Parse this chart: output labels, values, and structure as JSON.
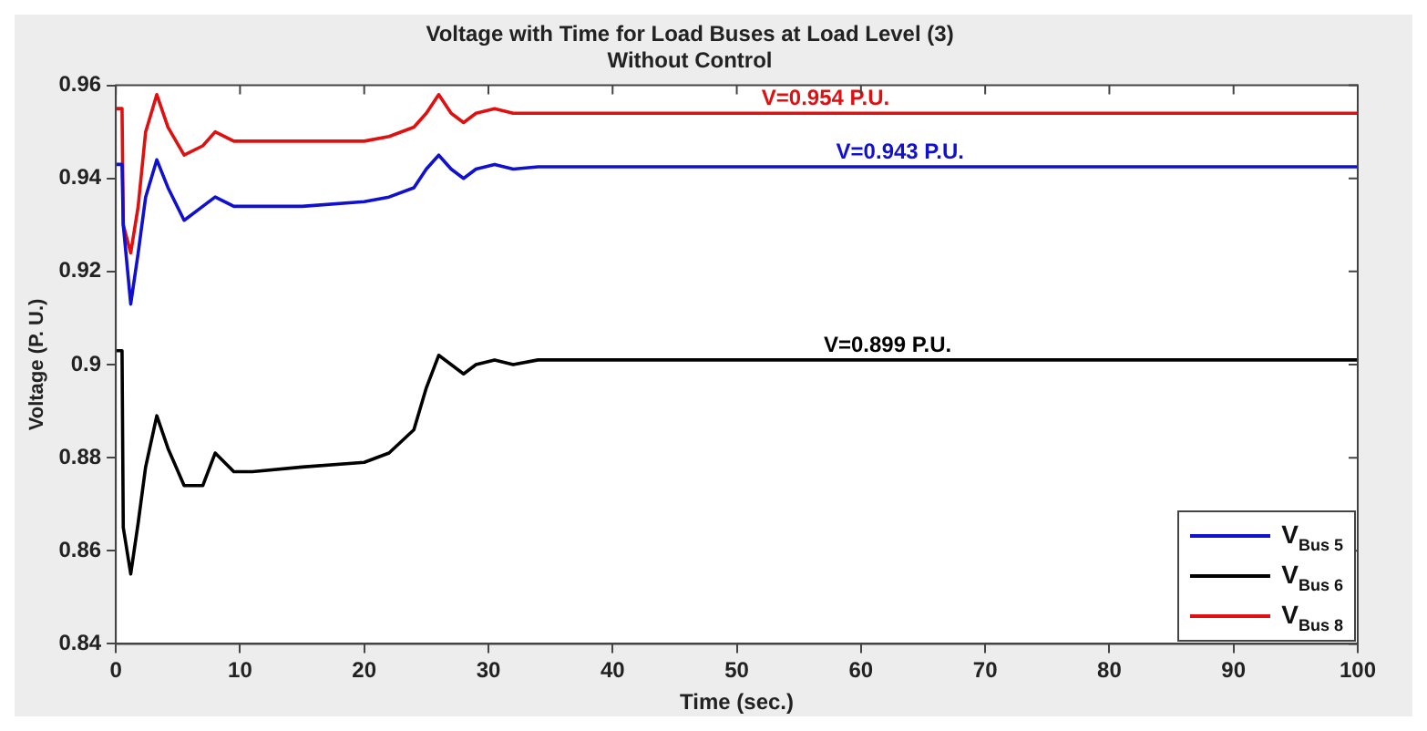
{
  "chart_data": {
    "type": "line",
    "title": "Voltage with Time for Load Buses at Load Level (3)",
    "subtitle": "Without Control",
    "xlabel": "Time (sec.)",
    "ylabel": "Voltage (P. U.)",
    "x": [
      0,
      0.5,
      0.6,
      1.2,
      1.8,
      2.4,
      3.3,
      4.2,
      5.5,
      7,
      8,
      9.5,
      11,
      15,
      20,
      22,
      24,
      25,
      26,
      27,
      28,
      29,
      30.5,
      32,
      34,
      50,
      100
    ],
    "series": [
      {
        "name": "V$_{Bus 5}$",
        "color": "#1010d0",
        "values": [
          0.943,
          0.943,
          0.93,
          0.913,
          0.924,
          0.936,
          0.944,
          0.938,
          0.931,
          0.934,
          0.936,
          0.934,
          0.934,
          0.934,
          0.935,
          0.936,
          0.938,
          0.942,
          0.945,
          0.942,
          0.94,
          0.942,
          0.943,
          0.942,
          0.9425,
          0.9425,
          0.9425
        ]
      },
      {
        "name": "V$_{Bus 6}$",
        "color": "#000000",
        "values": [
          0.903,
          0.903,
          0.865,
          0.855,
          0.866,
          0.878,
          0.889,
          0.882,
          0.874,
          0.874,
          0.881,
          0.877,
          0.877,
          0.878,
          0.879,
          0.881,
          0.886,
          0.895,
          0.902,
          0.9,
          0.898,
          0.9,
          0.901,
          0.9,
          0.901,
          0.901,
          0.901
        ]
      },
      {
        "name": "V$_{Bus 8}$",
        "color": "#e01010",
        "values": [
          0.955,
          0.955,
          0.93,
          0.924,
          0.934,
          0.95,
          0.958,
          0.951,
          0.945,
          0.947,
          0.95,
          0.948,
          0.948,
          0.948,
          0.948,
          0.949,
          0.951,
          0.954,
          0.958,
          0.954,
          0.952,
          0.954,
          0.955,
          0.954,
          0.954,
          0.954,
          0.954
        ]
      }
    ],
    "xlim": [
      0,
      100
    ],
    "xticks": [
      0,
      10,
      20,
      30,
      40,
      50,
      60,
      70,
      80,
      90,
      100
    ],
    "ylim": [
      0.84,
      0.96
    ],
    "yticks": [
      0.84,
      0.86,
      0.88,
      0.9,
      0.92,
      0.94,
      0.96
    ],
    "annotations": [
      {
        "text": "V=0.954 P.U.",
        "x": 52,
        "y": 0.954
      },
      {
        "text": "V=0.943 P.U.",
        "x": 58,
        "y": 0.9425
      },
      {
        "text": "V=0.899 P.U.",
        "x": 57,
        "y": 0.901
      }
    ],
    "grid": false,
    "legend": "bottom right",
    "marker": "none",
    "line_style": "solid"
  }
}
